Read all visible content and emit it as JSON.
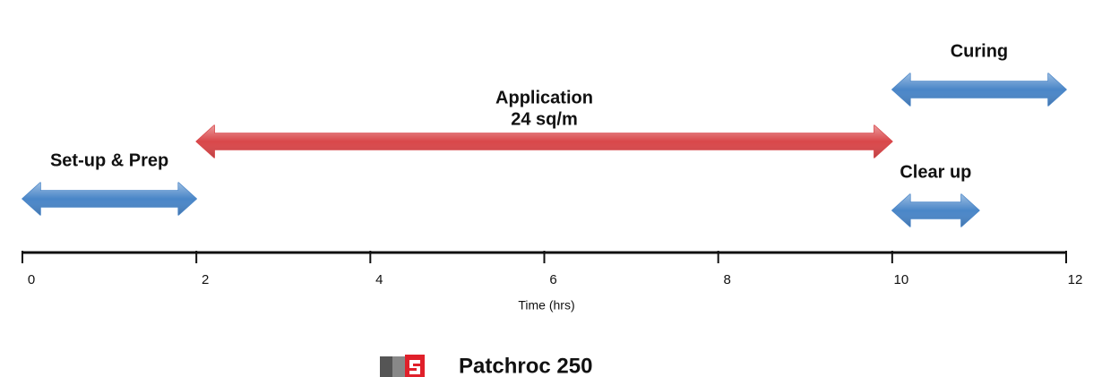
{
  "chart_data": {
    "type": "timeline",
    "tasks": [
      {
        "name": "Set-up & Prep",
        "start": 0,
        "end": 2,
        "color": "#4a86c8"
      },
      {
        "name": "Application",
        "detail": "24 sq/m",
        "start": 2,
        "end": 10,
        "color": "#d9474a"
      },
      {
        "name": "Curing",
        "start": 10,
        "end": 12,
        "color": "#4a86c8"
      },
      {
        "name": "Clear up",
        "start": 10,
        "end": 11,
        "color": "#4a86c8"
      }
    ],
    "xlabel": "Time (hrs)",
    "xlim": [
      0,
      12
    ],
    "xticks": [
      0,
      2,
      4,
      6,
      8,
      10,
      12
    ]
  },
  "footer": {
    "brand": "Patchroc 250"
  }
}
